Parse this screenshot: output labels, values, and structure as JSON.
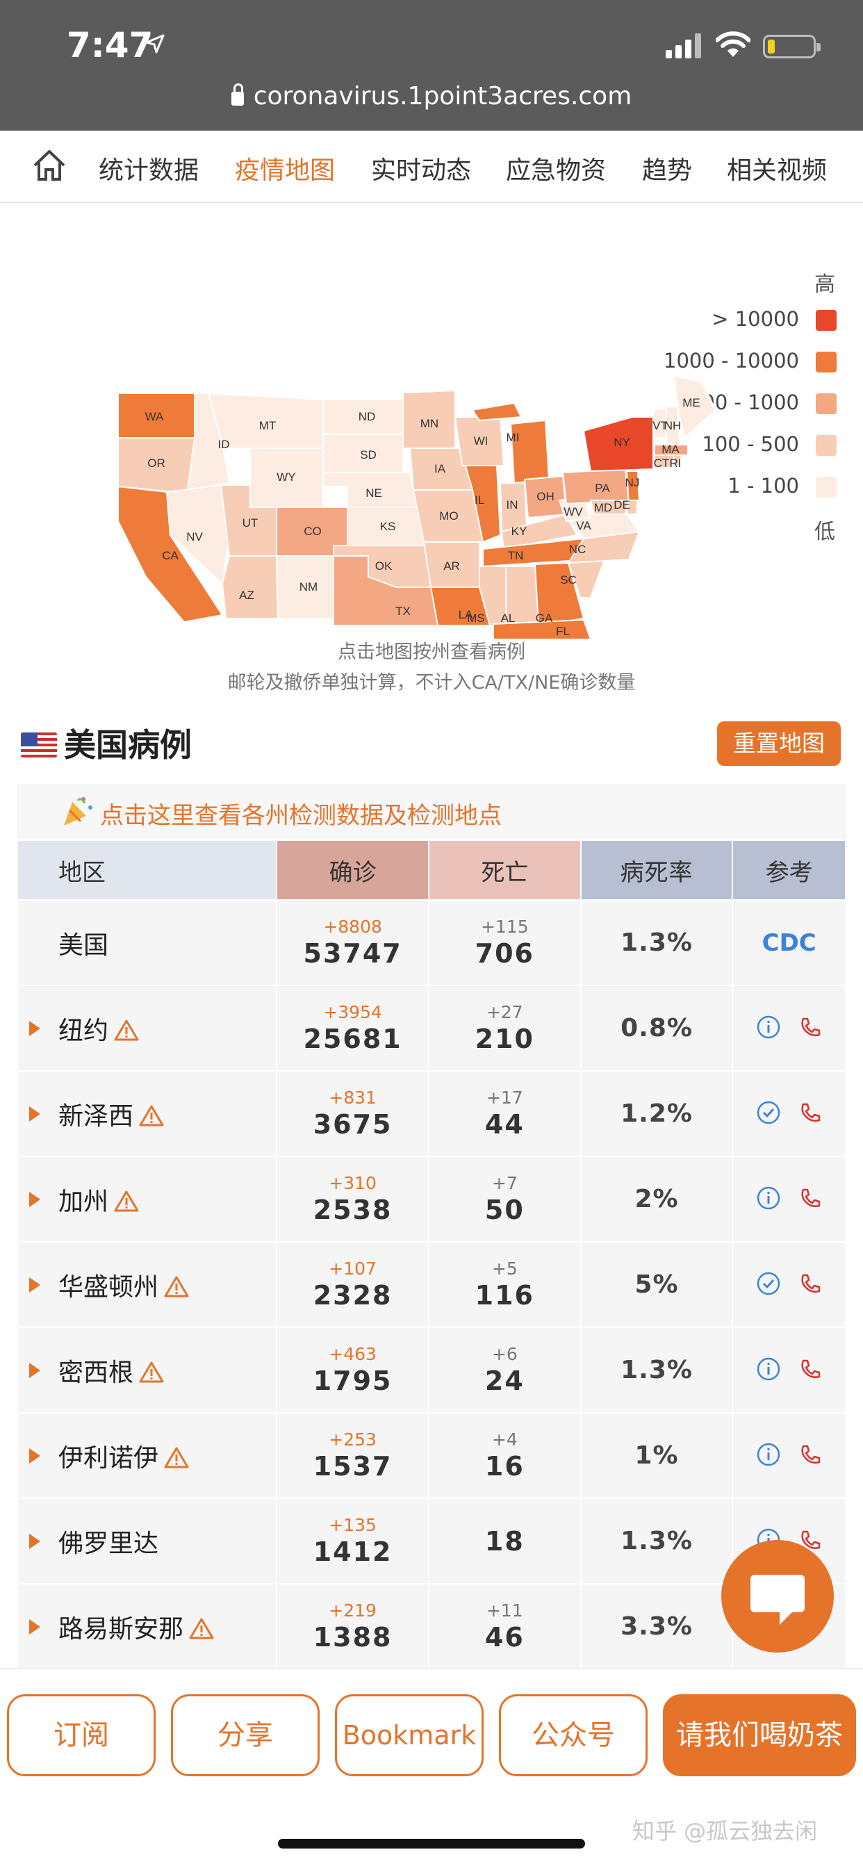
{
  "status": {
    "time": "7:47"
  },
  "browser": {
    "url": "coronavirus.1point3acres.com"
  },
  "nav": {
    "items": [
      "统计数据",
      "疫情地图",
      "实时动态",
      "应急物资",
      "趋势",
      "相关视频"
    ],
    "active_index": 1
  },
  "map": {
    "legend_high": "高",
    "legend_low": "低",
    "legend": [
      {
        "label": "> 10000",
        "color": "#e8472a"
      },
      {
        "label": "1000 - 10000",
        "color": "#ee7b39"
      },
      {
        "label": "500 - 1000",
        "color": "#f3a783"
      },
      {
        "label": "100 - 500",
        "color": "#f8cdb6"
      },
      {
        "label": "1 - 100",
        "color": "#fcece2"
      }
    ],
    "states": [
      "WA",
      "OR",
      "CA",
      "MT",
      "ID",
      "WY",
      "NV",
      "UT",
      "CO",
      "AZ",
      "NM",
      "ND",
      "SD",
      "NE",
      "KS",
      "OK",
      "TX",
      "MN",
      "IA",
      "MO",
      "AR",
      "LA",
      "WI",
      "IL",
      "MI",
      "IN",
      "OH",
      "KY",
      "TN",
      "MS",
      "AL",
      "GA",
      "FL",
      "SC",
      "NC",
      "VA",
      "WV",
      "PA",
      "NY",
      "NJ",
      "DE",
      "MD",
      "VT",
      "NH",
      "ME",
      "MA",
      "CT",
      "RI"
    ],
    "caption1": "点击地图按州查看病例",
    "caption2": "邮轮及撤侨单独计算，不计入CA/TX/NE确诊数量"
  },
  "section": {
    "title": "美国病例",
    "reset_button": "重置地图",
    "test_banner": "点击这里查看各州检测数据及检测地点"
  },
  "table": {
    "headers": {
      "region": "地区",
      "confirmed": "确诊",
      "deaths": "死亡",
      "rate": "病死率",
      "ref": "参考"
    },
    "rows": [
      {
        "region": "美国",
        "conf_delta": "+8808",
        "confirmed": "53747",
        "death_delta": "+115",
        "deaths": "706",
        "rate": "1.3%",
        "ref": "CDC",
        "expand": false,
        "warn": false,
        "info": ""
      },
      {
        "region": "纽约",
        "conf_delta": "+3954",
        "confirmed": "25681",
        "death_delta": "+27",
        "deaths": "210",
        "rate": "0.8%",
        "expand": true,
        "warn": true,
        "info": "i"
      },
      {
        "region": "新泽西",
        "conf_delta": "+831",
        "confirmed": "3675",
        "death_delta": "+17",
        "deaths": "44",
        "rate": "1.2%",
        "expand": true,
        "warn": true,
        "info": "check"
      },
      {
        "region": "加州",
        "conf_delta": "+310",
        "confirmed": "2538",
        "death_delta": "+7",
        "deaths": "50",
        "rate": "2%",
        "expand": true,
        "warn": true,
        "info": "i"
      },
      {
        "region": "华盛顿州",
        "conf_delta": "+107",
        "confirmed": "2328",
        "death_delta": "+5",
        "deaths": "116",
        "rate": "5%",
        "expand": true,
        "warn": true,
        "info": "check"
      },
      {
        "region": "密西根",
        "conf_delta": "+463",
        "confirmed": "1795",
        "death_delta": "+6",
        "deaths": "24",
        "rate": "1.3%",
        "expand": true,
        "warn": true,
        "info": "i"
      },
      {
        "region": "伊利诺伊",
        "conf_delta": "+253",
        "confirmed": "1537",
        "death_delta": "+4",
        "deaths": "16",
        "rate": "1%",
        "expand": true,
        "warn": true,
        "info": "i"
      },
      {
        "region": "佛罗里达",
        "conf_delta": "+135",
        "confirmed": "1412",
        "death_delta": "",
        "deaths": "18",
        "rate": "1.3%",
        "expand": true,
        "warn": false,
        "info": "i"
      },
      {
        "region": "路易斯安那",
        "conf_delta": "+219",
        "confirmed": "1388",
        "death_delta": "+11",
        "deaths": "46",
        "rate": "3.3%",
        "expand": true,
        "warn": true,
        "info": ""
      }
    ]
  },
  "bottom": {
    "buttons": [
      "订阅",
      "分享",
      "Bookmark",
      "公众号",
      "请我们喝奶茶"
    ]
  },
  "watermark": "知乎 @孤云独去闲",
  "colors": {
    "accent": "#e5732a",
    "top_bar": "#5b5b5b"
  }
}
